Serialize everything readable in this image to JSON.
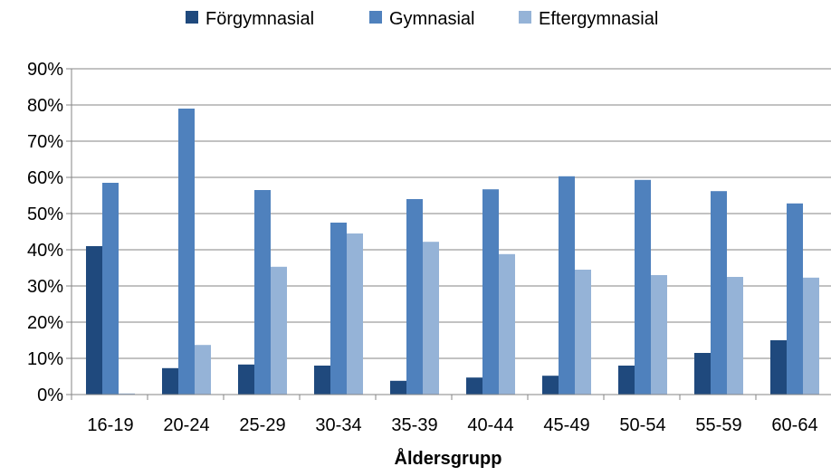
{
  "chart_data": {
    "type": "bar",
    "title": "",
    "xlabel": "Åldersgrupp",
    "ylabel": "",
    "ylim": [
      0,
      0.9
    ],
    "y_ticks": [
      0,
      0.1,
      0.2,
      0.3,
      0.4,
      0.5,
      0.6,
      0.7,
      0.8,
      0.9
    ],
    "y_tick_labels": [
      "0%",
      "10%",
      "20%",
      "30%",
      "40%",
      "50%",
      "60%",
      "70%",
      "80%",
      "90%"
    ],
    "grid": true,
    "legend_position": "top",
    "categories": [
      "16-19",
      "20-24",
      "25-29",
      "30-34",
      "35-39",
      "40-44",
      "45-49",
      "50-54",
      "55-59",
      "60-64"
    ],
    "series": [
      {
        "name": "Förgymnasial",
        "color": "#1F497D",
        "values": [
          0.41,
          0.073,
          0.083,
          0.08,
          0.038,
          0.047,
          0.052,
          0.08,
          0.115,
          0.15
        ]
      },
      {
        "name": "Gymnasial",
        "color": "#4F81BD",
        "values": [
          0.585,
          0.79,
          0.565,
          0.475,
          0.54,
          0.567,
          0.603,
          0.593,
          0.562,
          0.528
        ]
      },
      {
        "name": "Eftergymnasial",
        "color": "#95B3D7",
        "values": [
          0.003,
          0.137,
          0.353,
          0.445,
          0.422,
          0.388,
          0.345,
          0.33,
          0.325,
          0.323
        ]
      }
    ]
  }
}
